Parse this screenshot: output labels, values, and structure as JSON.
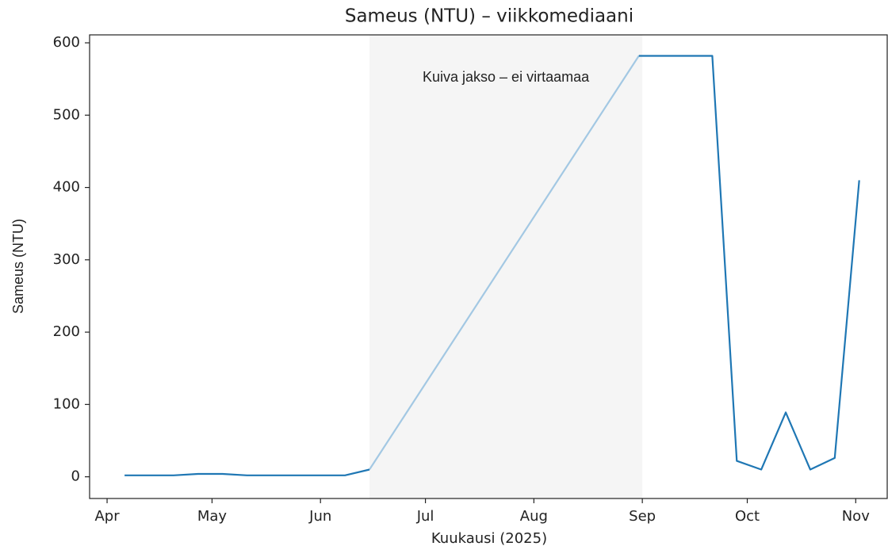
{
  "chart_data": {
    "type": "line",
    "title": "Sameus (NTU) – viikkomediaani",
    "xlabel": "Kuukausi (2025)",
    "ylabel": "Sameus (NTU)",
    "annotation": "Kuiva jakso – ei virtaamaa",
    "shaded_span": [
      "2025-06-15",
      "2025-09-01"
    ],
    "shade_color": "#f5f5f5",
    "x": [
      "2025-04-06",
      "2025-04-13",
      "2025-04-20",
      "2025-04-27",
      "2025-05-04",
      "2025-05-11",
      "2025-05-18",
      "2025-05-25",
      "2025-06-01",
      "2025-06-08",
      "2025-06-15",
      "2025-06-22",
      "2025-06-29",
      "2025-07-06",
      "2025-07-13",
      "2025-07-20",
      "2025-07-27",
      "2025-08-03",
      "2025-08-10",
      "2025-08-17",
      "2025-08-24",
      "2025-08-31",
      "2025-09-07",
      "2025-09-14",
      "2025-09-21",
      "2025-09-28",
      "2025-10-05",
      "2025-10-12",
      "2025-10-19",
      "2025-10-26",
      "2025-11-02"
    ],
    "series": [
      {
        "color": "#1f77b4",
        "values": [
          2,
          2,
          2,
          4,
          4,
          2,
          2,
          2,
          2,
          2,
          10,
          null,
          null,
          null,
          null,
          null,
          null,
          null,
          null,
          null,
          null,
          582,
          582,
          582,
          582,
          22,
          10,
          89,
          10,
          26,
          410
        ]
      },
      {
        "color": "#a3c8e3",
        "values": [
          null,
          null,
          null,
          null,
          null,
          null,
          null,
          null,
          null,
          null,
          10,
          null,
          null,
          null,
          null,
          null,
          null,
          null,
          null,
          null,
          null,
          582,
          null,
          null,
          null,
          null,
          null,
          null,
          null,
          null,
          null
        ]
      }
    ],
    "xlim": [
      "2025-03-27",
      "2025-11-10"
    ],
    "xticks": [
      {
        "value": "2025-04-01",
        "label": "Apr"
      },
      {
        "value": "2025-05-01",
        "label": "May"
      },
      {
        "value": "2025-06-01",
        "label": "Jun"
      },
      {
        "value": "2025-07-01",
        "label": "Jul"
      },
      {
        "value": "2025-08-01",
        "label": "Aug"
      },
      {
        "value": "2025-09-01",
        "label": "Sep"
      },
      {
        "value": "2025-10-01",
        "label": "Oct"
      },
      {
        "value": "2025-11-01",
        "label": "Nov"
      }
    ],
    "ylim": [
      -30,
      611
    ],
    "yticks": [
      0,
      100,
      200,
      300,
      400,
      500,
      600
    ],
    "grid": false
  }
}
